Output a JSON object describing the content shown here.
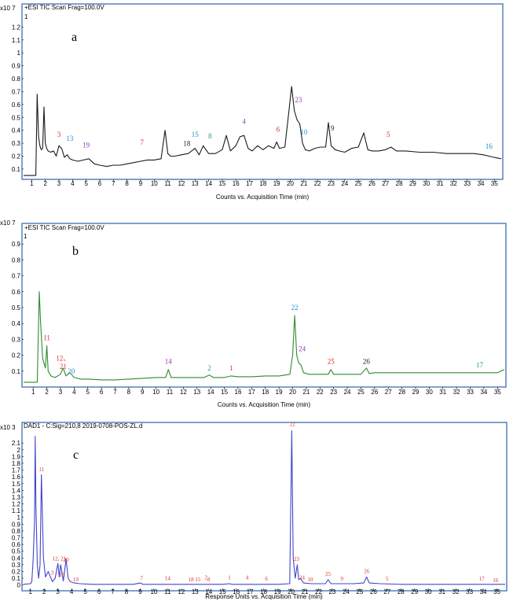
{
  "colors": {
    "frame": "#4a7ab8",
    "trace_a": "#1a1a1a",
    "trace_b": "#2f8a2f",
    "trace_c": "#4444cc",
    "red": "#e03020",
    "blue": "#2090d0",
    "purple": "#9040b0",
    "green": "#30a050",
    "black": "#222222"
  },
  "chart_data": [
    {
      "type": "line",
      "panel_label": "a",
      "header": "+ESI TIC Scan Frag=100.0V",
      "y_scale_label": "x10 7",
      "xlabel": "Counts vs. Acquisition Time (min)",
      "xlim": [
        0.4,
        35.5
      ],
      "ylim": [
        0.02,
        1.3
      ],
      "x_ticks": [
        1,
        2,
        3,
        4,
        5,
        6,
        7,
        8,
        9,
        10,
        11,
        12,
        13,
        14,
        15,
        16,
        17,
        18,
        19,
        20,
        21,
        22,
        23,
        24,
        25,
        26,
        27,
        28,
        29,
        30,
        31,
        32,
        33,
        34,
        35
      ],
      "y_ticks": [
        "0.1",
        "0.2",
        "0.3",
        "0.4",
        "0.5",
        "0.6",
        "0.7",
        "0.8",
        "0.9",
        "1",
        "1.1",
        "1.2"
      ],
      "y_tick_values": [
        0.1,
        0.2,
        0.3,
        0.4,
        0.5,
        0.6,
        0.7,
        0.8,
        0.9,
        1.0,
        1.1,
        1.2
      ],
      "y_top_label": "1",
      "series": [
        {
          "x": [
            0.4,
            1.0,
            1.3,
            1.4,
            1.5,
            1.6,
            1.7,
            1.8,
            1.9,
            2.0,
            2.1,
            2.2,
            2.4,
            2.6,
            2.8,
            3.0,
            3.2,
            3.4,
            3.6,
            3.8,
            4.0,
            4.4,
            4.8,
            5.2,
            5.6,
            6.0,
            6.5,
            7.0,
            7.5,
            8.0,
            8.5,
            9.0,
            9.5,
            10.0,
            10.5,
            10.8,
            11.0,
            11.2,
            11.5,
            12.0,
            12.5,
            13.0,
            13.3,
            13.6,
            14.0,
            14.5,
            15.0,
            15.3,
            15.6,
            16.0,
            16.3,
            16.6,
            16.9,
            17.2,
            17.6,
            18.0,
            18.4,
            18.8,
            19.0,
            19.2,
            19.6,
            19.9,
            20.1,
            20.3,
            20.5,
            20.7,
            20.9,
            21.1,
            21.4,
            21.8,
            22.2,
            22.6,
            22.8,
            23.0,
            23.3,
            23.6,
            24.0,
            24.5,
            25.0,
            25.4,
            25.7,
            26.0,
            26.5,
            27.0,
            27.4,
            27.8,
            28.5,
            29.5,
            30.5,
            31.5,
            32.5,
            33.5,
            34.2,
            34.6,
            35.0,
            35.5
          ],
          "y": [
            0.05,
            0.05,
            0.05,
            0.68,
            0.35,
            0.28,
            0.25,
            0.26,
            0.58,
            0.3,
            0.26,
            0.24,
            0.23,
            0.24,
            0.2,
            0.28,
            0.26,
            0.19,
            0.21,
            0.18,
            0.17,
            0.16,
            0.17,
            0.18,
            0.14,
            0.13,
            0.12,
            0.13,
            0.13,
            0.14,
            0.15,
            0.16,
            0.17,
            0.17,
            0.18,
            0.4,
            0.22,
            0.2,
            0.2,
            0.21,
            0.22,
            0.26,
            0.21,
            0.28,
            0.22,
            0.22,
            0.25,
            0.36,
            0.24,
            0.28,
            0.35,
            0.36,
            0.26,
            0.24,
            0.28,
            0.25,
            0.28,
            0.26,
            0.31,
            0.26,
            0.27,
            0.55,
            0.74,
            0.55,
            0.48,
            0.45,
            0.3,
            0.25,
            0.24,
            0.26,
            0.27,
            0.27,
            0.46,
            0.28,
            0.25,
            0.24,
            0.23,
            0.26,
            0.27,
            0.38,
            0.25,
            0.24,
            0.24,
            0.25,
            0.27,
            0.24,
            0.24,
            0.23,
            0.23,
            0.22,
            0.22,
            0.22,
            0.21,
            0.2,
            0.19,
            0.18
          ]
        }
      ],
      "peaks": [
        {
          "label": "3",
          "x": 3.0,
          "y": 0.33,
          "color": "red"
        },
        {
          "label": "13",
          "x": 3.8,
          "y": 0.3,
          "color": "blue"
        },
        {
          "label": "19",
          "x": 5.0,
          "y": 0.25,
          "color": "purple"
        },
        {
          "label": "7",
          "x": 9.1,
          "y": 0.27,
          "color": "red"
        },
        {
          "label": "18",
          "x": 12.4,
          "y": 0.26,
          "color": "black"
        },
        {
          "label": "15",
          "x": 13.0,
          "y": 0.33,
          "color": "blue"
        },
        {
          "label": "8",
          "x": 14.1,
          "y": 0.32,
          "color": "green"
        },
        {
          "label": "4",
          "x": 16.6,
          "y": 0.43,
          "color": "purple"
        },
        {
          "label": "6",
          "x": 19.1,
          "y": 0.37,
          "color": "red"
        },
        {
          "label": "23",
          "x": 20.6,
          "y": 0.6,
          "color": "purple"
        },
        {
          "label": "10",
          "x": 21.0,
          "y": 0.35,
          "color": "blue"
        },
        {
          "label": "9",
          "x": 23.1,
          "y": 0.38,
          "color": "black"
        },
        {
          "label": "5",
          "x": 27.2,
          "y": 0.33,
          "color": "red"
        },
        {
          "label": "16",
          "x": 34.6,
          "y": 0.24,
          "color": "blue"
        }
      ]
    },
    {
      "type": "line",
      "panel_label": "b",
      "header": "+ESI TIC Scan Frag=100.0V",
      "y_scale_label": "x10 7",
      "xlabel": "Counts vs. Acquisition Time (min)",
      "xlim": [
        0.3,
        35.5
      ],
      "ylim": [
        0.0,
        1.0
      ],
      "x_ticks": [
        1,
        2,
        3,
        4,
        5,
        6,
        7,
        8,
        9,
        10,
        11,
        12,
        13,
        14,
        15,
        16,
        17,
        18,
        19,
        20,
        21,
        22,
        23,
        24,
        25,
        26,
        27,
        28,
        29,
        30,
        31,
        32,
        33,
        34,
        35
      ],
      "y_ticks": [
        "0.1",
        "0.2",
        "0.3",
        "0.4",
        "0.5",
        "0.6",
        "0.7",
        "0.8",
        "0.9"
      ],
      "y_tick_values": [
        0.1,
        0.2,
        0.3,
        0.4,
        0.5,
        0.6,
        0.7,
        0.8,
        0.9
      ],
      "y_top_label": "1",
      "series": [
        {
          "x": [
            0.3,
            1.0,
            1.3,
            1.45,
            1.55,
            1.7,
            1.9,
            2.0,
            2.1,
            2.3,
            2.6,
            3.0,
            3.2,
            3.4,
            3.7,
            4.0,
            4.5,
            5.0,
            6.0,
            7.0,
            8.0,
            9.0,
            10.0,
            10.7,
            10.9,
            11.1,
            11.5,
            12.5,
            13.5,
            13.9,
            14.2,
            15.0,
            15.5,
            16.0,
            17.0,
            18.0,
            19.0,
            19.8,
            20.0,
            20.15,
            20.3,
            20.45,
            20.6,
            20.8,
            21.2,
            22.0,
            22.6,
            22.8,
            23.0,
            24.0,
            25.0,
            25.4,
            25.6,
            26.0,
            27.0,
            28.0,
            29.0,
            30.0,
            31.0,
            32.0,
            33.0,
            34.0,
            35.0,
            35.5
          ],
          "y": [
            0.03,
            0.03,
            0.03,
            0.6,
            0.4,
            0.18,
            0.12,
            0.26,
            0.1,
            0.07,
            0.06,
            0.08,
            0.12,
            0.07,
            0.09,
            0.06,
            0.05,
            0.05,
            0.045,
            0.045,
            0.05,
            0.055,
            0.06,
            0.06,
            0.11,
            0.06,
            0.06,
            0.06,
            0.06,
            0.075,
            0.06,
            0.06,
            0.07,
            0.065,
            0.065,
            0.07,
            0.07,
            0.08,
            0.2,
            0.45,
            0.2,
            0.15,
            0.14,
            0.09,
            0.08,
            0.08,
            0.08,
            0.11,
            0.08,
            0.08,
            0.08,
            0.12,
            0.085,
            0.09,
            0.09,
            0.09,
            0.09,
            0.09,
            0.09,
            0.09,
            0.09,
            0.09,
            0.09,
            0.11
          ]
        }
      ],
      "peaks": [
        {
          "label": "11",
          "x": 2.0,
          "y": 0.28,
          "color": "red"
        },
        {
          "label": "12、",
          "x": 3.2,
          "y": 0.15,
          "color": "red"
        },
        {
          "label": "21",
          "x": 3.2,
          "y": 0.1,
          "color": "red"
        },
        {
          "label": "20",
          "x": 3.8,
          "y": 0.07,
          "color": "blue"
        },
        {
          "label": "14",
          "x": 10.9,
          "y": 0.13,
          "color": "purple"
        },
        {
          "label": "2",
          "x": 13.9,
          "y": 0.09,
          "color": "blue"
        },
        {
          "label": "1",
          "x": 15.5,
          "y": 0.09,
          "color": "red"
        },
        {
          "label": "22",
          "x": 20.15,
          "y": 0.47,
          "color": "blue"
        },
        {
          "label": "24",
          "x": 20.7,
          "y": 0.21,
          "color": "purple"
        },
        {
          "label": "25",
          "x": 22.8,
          "y": 0.13,
          "color": "red"
        },
        {
          "label": "26",
          "x": 25.4,
          "y": 0.13,
          "color": "black"
        },
        {
          "label": "17",
          "x": 33.7,
          "y": 0.11,
          "color": "green"
        }
      ]
    },
    {
      "type": "line",
      "panel_label": "c",
      "header": "DAD1 - C:Sig=210,8 2019-0708-POS-ZL.d",
      "y_scale_label": "x10 3",
      "xlabel": "Response Units vs. Acquisition Time (min)",
      "xlim": [
        0.5,
        35.6
      ],
      "ylim": [
        -0.05,
        2.3
      ],
      "x_ticks": [
        1,
        2,
        3,
        4,
        5,
        6,
        7,
        8,
        9,
        10,
        11,
        12,
        13,
        14,
        15,
        16,
        17,
        18,
        19,
        20,
        21,
        22,
        23,
        24,
        25,
        26,
        27,
        28,
        29,
        30,
        31,
        32,
        33,
        34,
        35
      ],
      "y_ticks": [
        "0",
        "0.1",
        "0.2",
        "0.3",
        "0.4",
        "0.5",
        "0.6",
        "0.7",
        "0.8",
        "0.9",
        "1",
        "1.1",
        "1.2",
        "1.3",
        "1.4",
        "1.5",
        "1.6",
        "1.7",
        "1.8",
        "1.9",
        "2",
        "2.1"
      ],
      "y_tick_values": [
        0,
        0.1,
        0.2,
        0.3,
        0.4,
        0.5,
        0.6,
        0.7,
        0.8,
        0.9,
        1.0,
        1.1,
        1.2,
        1.3,
        1.4,
        1.5,
        1.6,
        1.7,
        1.8,
        1.9,
        2.0,
        2.1
      ],
      "series": [
        {
          "x": [
            0.5,
            1.0,
            1.1,
            1.2,
            1.3,
            1.35,
            1.4,
            1.5,
            1.6,
            1.7,
            1.8,
            1.95,
            2.1,
            2.3,
            2.6,
            2.8,
            3.0,
            3.1,
            3.2,
            3.4,
            3.6,
            3.75,
            3.9,
            4.2,
            4.6,
            5.5,
            7.0,
            8.5,
            9.0,
            9.2,
            10.0,
            11.0,
            12.0,
            13.0,
            14.0,
            15.0,
            15.5,
            15.7,
            16.5,
            17.0,
            18.0,
            19.0,
            19.9,
            20.05,
            20.15,
            20.3,
            20.45,
            20.55,
            20.7,
            20.9,
            21.5,
            22.5,
            22.7,
            22.9,
            23.5,
            24.5,
            25.3,
            25.5,
            25.7,
            26.5,
            28.0,
            30.0,
            32.0,
            34.0,
            35.6
          ],
          "y": [
            0.01,
            0.02,
            0.05,
            0.38,
            0.95,
            2.2,
            1.2,
            0.3,
            0.1,
            0.3,
            1.63,
            0.4,
            0.12,
            0.2,
            0.05,
            0.1,
            0.32,
            0.12,
            0.3,
            0.06,
            0.38,
            0.1,
            0.05,
            0.03,
            0.02,
            0.01,
            0.01,
            0.01,
            0.03,
            0.01,
            0.01,
            0.01,
            0.01,
            0.01,
            0.01,
            0.01,
            0.02,
            0.01,
            0.01,
            0.01,
            0.01,
            0.01,
            0.02,
            2.28,
            0.4,
            0.1,
            0.3,
            0.08,
            0.1,
            0.03,
            0.02,
            0.02,
            0.08,
            0.02,
            0.02,
            0.02,
            0.03,
            0.12,
            0.03,
            0.02,
            0.01,
            0.01,
            0.01,
            0.01,
            0.01
          ]
        }
      ],
      "peaks": [
        {
          "label": "11",
          "x": 1.8,
          "y": 1.65,
          "color": "red"
        },
        {
          "label": "12, 21",
          "x": 3.1,
          "y": 0.33,
          "color": "red"
        },
        {
          "label": "20",
          "x": 3.6,
          "y": 0.31,
          "color": "red"
        },
        {
          "label": "3",
          "x": 2.6,
          "y": 0.12,
          "color": "red"
        },
        {
          "label": "13",
          "x": 3.3,
          "y": 0.09,
          "color": "red"
        },
        {
          "label": "19",
          "x": 4.3,
          "y": 0.02,
          "color": "red"
        },
        {
          "label": "7",
          "x": 9.1,
          "y": 0.04,
          "color": "red"
        },
        {
          "label": "14",
          "x": 11.0,
          "y": 0.04,
          "color": "red"
        },
        {
          "label": "18",
          "x": 12.7,
          "y": 0.02,
          "color": "red"
        },
        {
          "label": "15",
          "x": 13.2,
          "y": 0.02,
          "color": "red"
        },
        {
          "label": "2",
          "x": 13.8,
          "y": 0.05,
          "color": "red"
        },
        {
          "label": "8",
          "x": 14.0,
          "y": 0.02,
          "color": "red"
        },
        {
          "label": "1",
          "x": 15.5,
          "y": 0.05,
          "color": "red"
        },
        {
          "label": "4",
          "x": 16.8,
          "y": 0.05,
          "color": "red"
        },
        {
          "label": "6",
          "x": 18.2,
          "y": 0.03,
          "color": "red"
        },
        {
          "label": "22",
          "x": 20.1,
          "y": 2.32,
          "color": "red"
        },
        {
          "label": "23",
          "x": 20.4,
          "y": 0.32,
          "color": "red"
        },
        {
          "label": "24",
          "x": 20.8,
          "y": 0.05,
          "color": "red"
        },
        {
          "label": "10",
          "x": 21.4,
          "y": 0.02,
          "color": "red"
        },
        {
          "label": "25",
          "x": 22.7,
          "y": 0.1,
          "color": "red"
        },
        {
          "label": "9",
          "x": 23.7,
          "y": 0.03,
          "color": "red"
        },
        {
          "label": "26",
          "x": 25.5,
          "y": 0.14,
          "color": "red"
        },
        {
          "label": "5",
          "x": 27.0,
          "y": 0.03,
          "color": "red"
        },
        {
          "label": "17",
          "x": 33.9,
          "y": 0.03,
          "color": "red"
        },
        {
          "label": "16",
          "x": 34.9,
          "y": 0.01,
          "color": "red"
        }
      ]
    }
  ]
}
